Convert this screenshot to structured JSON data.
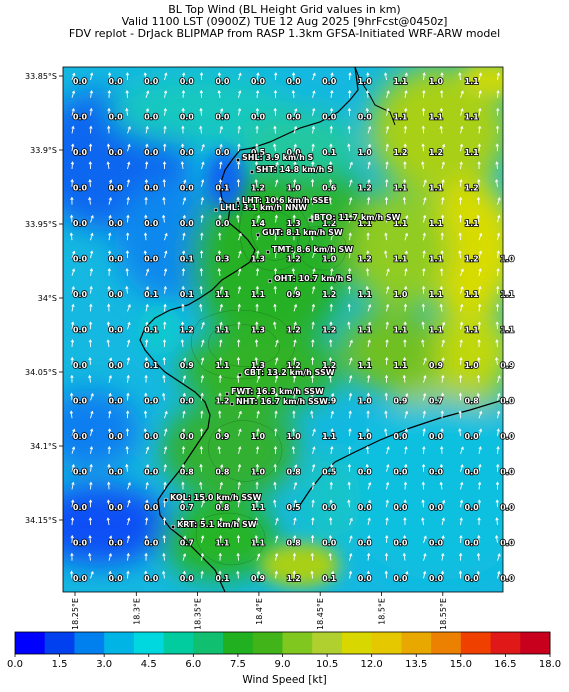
{
  "header": {
    "line1": "BL Top Wind (BL Height Grid values in km)",
    "line2": "Valid 1100 LST (0900Z) TUE 12 Aug 2025 [9hrFcst@0450z]",
    "line3": "FDV replot - DrJack BLIPMAP from RASP 1.3km GFSA-Initiated WRF-ARW model"
  },
  "lat_labels": [
    "33.85°S",
    "33.9°S",
    "33.95°S",
    "34°S",
    "34.05°S",
    "34.1°S",
    "34.15°S"
  ],
  "lon_labels": [
    "18.25°E",
    "18.3°E",
    "18.35°E",
    "18.4°E",
    "18.45°E",
    "18.5°E",
    "18.55°E"
  ],
  "grid_values": [
    [
      "0.0",
      "0.0",
      "0.0",
      "0.0",
      "0.0",
      "0.0",
      "0.0",
      "0.0",
      "1.0",
      "1.1",
      "1.0",
      "1.1",
      ""
    ],
    [
      "0.0",
      "0.0",
      "0.0",
      "0.0",
      "0.0",
      "0.0",
      "0.0",
      "0.0",
      "0.0",
      "1.1",
      "1.1",
      "1.1",
      ""
    ],
    [
      "0.0",
      "0.0",
      "0.0",
      "0.0",
      "0.0",
      "0.5",
      "0.0",
      "0.1",
      "1.0",
      "1.2",
      "1.2",
      "1.1",
      ""
    ],
    [
      "0.0",
      "0.0",
      "0.0",
      "0.0",
      "0.1",
      "1.2",
      "1.0",
      "0.6",
      "1.2",
      "1.1",
      "1.1",
      "1.2",
      ""
    ],
    [
      "0.0",
      "0.0",
      "0.0",
      "0.0",
      "0.0",
      "1.4",
      "1.3",
      "1.2",
      "1.1",
      "1.1",
      "1.1",
      "1.1",
      ""
    ],
    [
      "0.0",
      "0.0",
      "0.0",
      "0.1",
      "0.3",
      "1.3",
      "1.2",
      "1.0",
      "1.2",
      "1.1",
      "1.1",
      "1.2",
      "1.0"
    ],
    [
      "0.0",
      "0.0",
      "0.1",
      "0.1",
      "1.1",
      "1.1",
      "0.9",
      "1.2",
      "1.1",
      "1.0",
      "1.1",
      "1.1",
      "1.1"
    ],
    [
      "0.0",
      "0.0",
      "0.1",
      "1.2",
      "1.1",
      "1.3",
      "1.2",
      "1.2",
      "1.1",
      "1.1",
      "1.1",
      "1.1",
      "1.1"
    ],
    [
      "0.0",
      "0.0",
      "0.1",
      "0.9",
      "1.1",
      "1.3",
      "1.2",
      "1.2",
      "1.1",
      "1.1",
      "0.9",
      "1.0",
      "0.9"
    ],
    [
      "0.0",
      "0.0",
      "0.0",
      "0.0",
      "1.2",
      "",
      "",
      "0.9",
      "1.0",
      "0.9",
      "0.7",
      "0.8",
      "0.0"
    ],
    [
      "0.0",
      "0.0",
      "0.0",
      "0.0",
      "0.9",
      "1.0",
      "1.0",
      "1.1",
      "1.0",
      "0.0",
      "0.0",
      "0.0",
      "0.0"
    ],
    [
      "0.0",
      "0.0",
      "0.0",
      "0.8",
      "0.8",
      "1.0",
      "0.8",
      "0.5",
      "0.0",
      "0.0",
      "0.0",
      "0.0",
      "0.0"
    ],
    [
      "0.0",
      "0.0",
      "0.0",
      "0.7",
      "0.8",
      "1.1",
      "0.5",
      "0.0",
      "0.0",
      "0.0",
      "0.0",
      "0.0",
      "0.0"
    ],
    [
      "0.0",
      "0.0",
      "0.0",
      "0.7",
      "1.1",
      "1.1",
      "0.8",
      "0.0",
      "0.0",
      "0.0",
      "0.0",
      "0.0",
      "0.0"
    ],
    [
      "0.0",
      "0.0",
      "0.0",
      "0.0",
      "0.1",
      "0.9",
      "1.2",
      "0.1",
      "0.0",
      "0.0",
      "0.0",
      "0.0",
      "0.0"
    ]
  ],
  "stations": [
    {
      "label": "SHL: 3.9 km/h S"
    },
    {
      "label": "SHT: 14.8 km/h S"
    },
    {
      "label": "LHT: 10.6 km/h SSE"
    },
    {
      "label": "LHL: 3.1 km/h NNW"
    },
    {
      "label": "BTO: 11.7 km/h SW"
    },
    {
      "label": "GUT: 8.1 km/h SW"
    },
    {
      "label": "TMT: 8.6 km/h SW"
    },
    {
      "label": "OHT: 10.7 km/h S"
    },
    {
      "label": "CBT: 13.2 km/h SSW"
    },
    {
      "label": "FWT: 16.3 km/h SSW"
    },
    {
      "label": "NHT: 16.7 km/h SSW"
    },
    {
      "label": "KOL: 15.0 km/h SSW"
    },
    {
      "label": "KRT: 5.1 km/h SW"
    }
  ],
  "colorbar": {
    "label": "Wind Speed [kt]",
    "ticks": [
      "0.0",
      "1.5",
      "3.0",
      "4.5",
      "6.0",
      "7.5",
      "9.0",
      "10.5",
      "12.0",
      "13.5",
      "15.0",
      "16.5",
      "18.0"
    ],
    "colors": [
      "#0000ff",
      "#0040ee",
      "#0080ee",
      "#00b4e6",
      "#00d8e0",
      "#00cca0",
      "#10c070",
      "#20b020",
      "#40b418",
      "#80c820",
      "#b0d030",
      "#d8d800",
      "#e6c800",
      "#e8a800",
      "#ec8000",
      "#f04000",
      "#e01818",
      "#c8001e"
    ]
  },
  "wind_colors": {
    "water_deep": "#0a5bf0",
    "water": "#12b4e0",
    "mid": "#20c090",
    "land": "#28ae28",
    "high": "#a8d018",
    "peak": "#dede00"
  }
}
